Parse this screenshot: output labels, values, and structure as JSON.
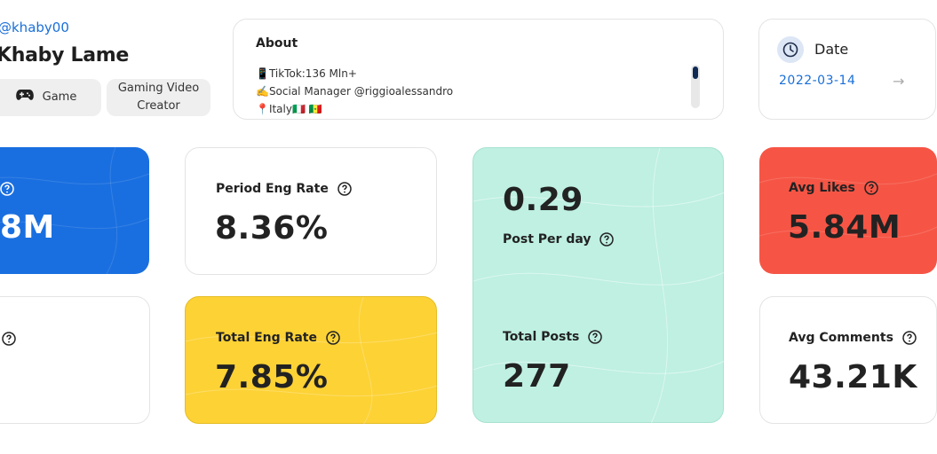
{
  "profile": {
    "handle": "@khaby00",
    "name": "Khaby Lame",
    "tags": [
      {
        "label": "Game",
        "icon": "gamepad-icon"
      },
      {
        "label": "Gaming Video Creator"
      }
    ]
  },
  "about": {
    "title": "About",
    "lines": [
      "📱TikTok:136 Mln+",
      "✍️Social Manager @riggioalessandro",
      "📍Italy🇮🇹 🇸🇳"
    ]
  },
  "date": {
    "label": "Date",
    "value": "2022-03-14",
    "arrow": "→"
  },
  "stats": {
    "blue_card": {
      "value": "8M"
    },
    "period_eng_rate": {
      "label": "Period Eng Rate",
      "value": "8.36%"
    },
    "total_eng_rate": {
      "label": "Total Eng Rate",
      "value": "7.85%"
    },
    "post_per_day": {
      "label": "Post Per day",
      "value": "0.29"
    },
    "total_posts": {
      "label": "Total Posts",
      "value": "277"
    },
    "avg_likes": {
      "label": "Avg Likes",
      "value": "5.84M"
    },
    "avg_comments": {
      "label": "Avg Comments",
      "value": "43.21K"
    }
  },
  "colors": {
    "blue": "#1a6fe0",
    "yellow": "#fdd235",
    "mint": "#bff0e2",
    "red": "#f65545",
    "link": "#1a6fd8"
  }
}
